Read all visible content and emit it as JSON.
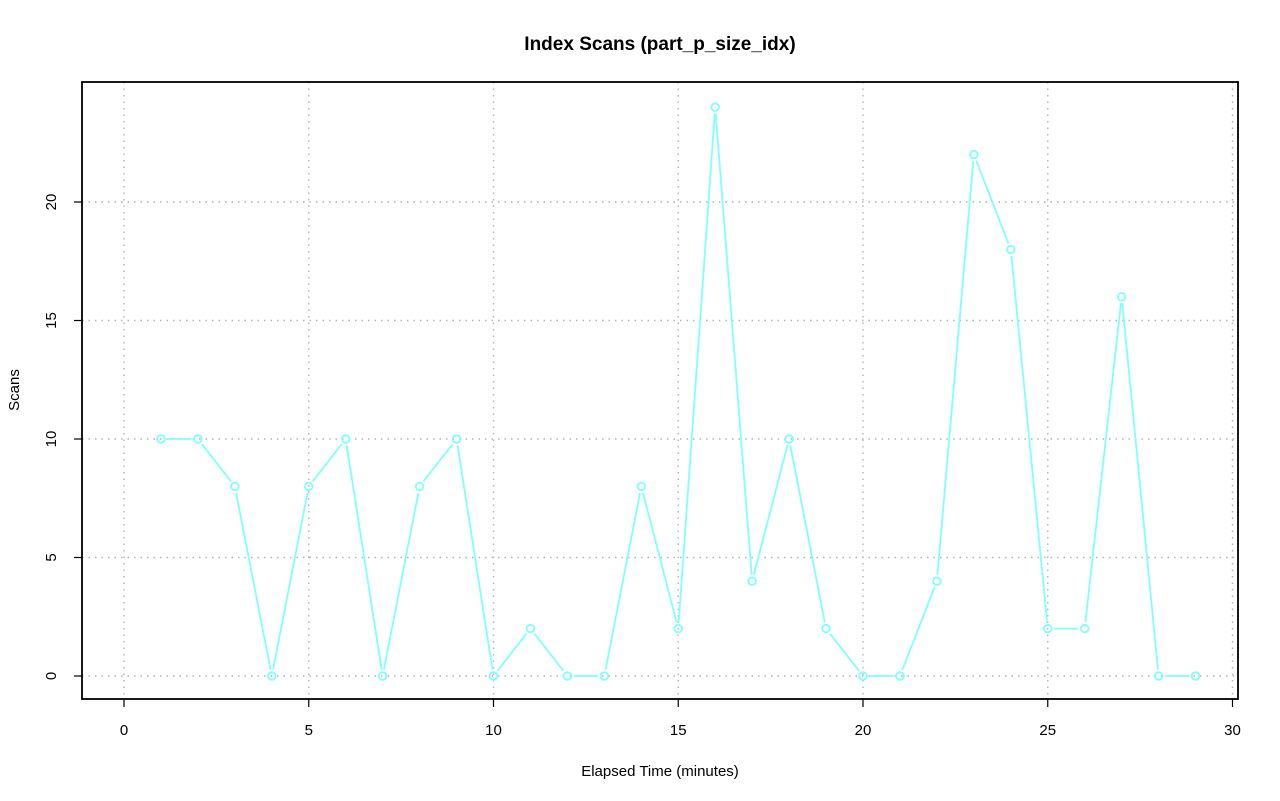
{
  "chart_data": {
    "type": "line",
    "title": "Index Scans (part_p_size_idx)",
    "xlabel": "Elapsed Time (minutes)",
    "ylabel": "Scans",
    "xlim": [
      0,
      30
    ],
    "ylim": [
      0,
      24
    ],
    "x_ticks": [
      "0",
      "5",
      "10",
      "15",
      "20",
      "25",
      "30"
    ],
    "y_ticks": [
      "0",
      "5",
      "10",
      "15",
      "20"
    ],
    "grid": true,
    "line_color": "#80ffff",
    "marker": "open-circle",
    "series": [
      {
        "x": [
          1,
          2,
          3,
          4,
          5,
          6,
          7,
          8,
          9,
          10,
          11,
          12,
          13,
          14,
          15,
          16,
          17,
          18,
          19,
          20,
          21,
          22,
          23,
          24,
          25,
          26,
          27,
          28,
          29
        ],
        "values": [
          10,
          10,
          8,
          0,
          8,
          10,
          0,
          8,
          10,
          0,
          2,
          0,
          0,
          8,
          2,
          24,
          4,
          10,
          2,
          0,
          0,
          4,
          22,
          18,
          2,
          2,
          16,
          0,
          0
        ]
      }
    ]
  }
}
